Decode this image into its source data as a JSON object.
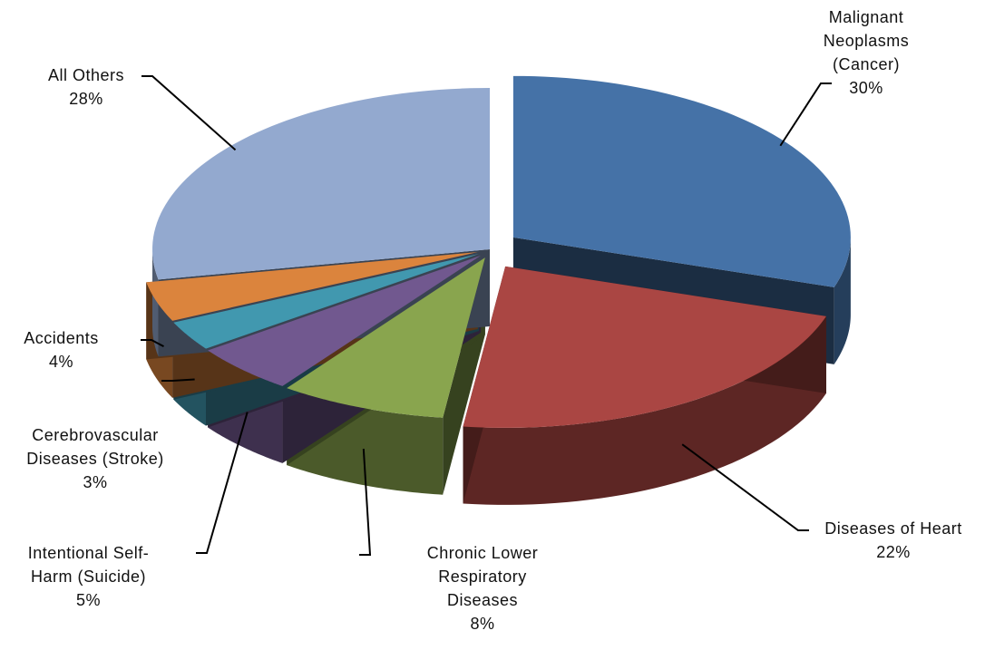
{
  "chart_data": {
    "type": "pie3d",
    "categories": [
      "Malignant Neoplasms (Cancer)",
      "Diseases of Heart",
      "Chronic Lower Respiratory Diseases",
      "Intentional Self-Harm (Suicide)",
      "Cerebrovascular Diseases (Stroke)",
      "Accidents",
      "All Others"
    ],
    "values": [
      30,
      22,
      8,
      5,
      3,
      4,
      28
    ],
    "value_labels": [
      "30%",
      "22%",
      "8%",
      "5%",
      "3%",
      "4%",
      "28%"
    ],
    "colors": [
      "#4572a7",
      "#aa4643",
      "#89a54e",
      "#71588f",
      "#4198af",
      "#db843d",
      "#93a9cf"
    ]
  }
}
